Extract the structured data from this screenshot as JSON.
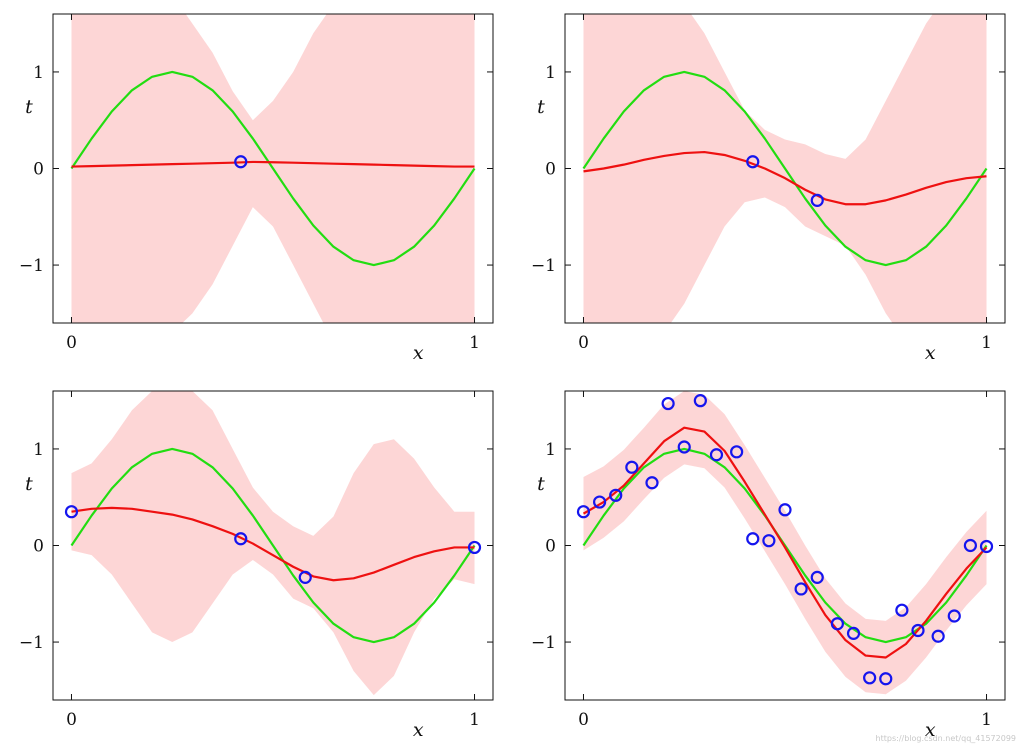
{
  "chart_data": [
    {
      "type": "line",
      "xlabel": "x",
      "ylabel": "t",
      "xlim": [
        0,
        1
      ],
      "ylim": [
        -1.6,
        1.6
      ],
      "xticks": [
        "0",
        "1"
      ],
      "yticks": [
        "−1",
        "0",
        "1"
      ],
      "grid": false,
      "legend": "none",
      "colors": {
        "true": "#22dd11",
        "mean": "#ee1111",
        "band": "#fdd6d6",
        "points": "#1515ee"
      },
      "x": [
        0,
        0.05,
        0.1,
        0.15,
        0.2,
        0.25,
        0.3,
        0.35,
        0.4,
        0.45,
        0.5,
        0.55,
        0.6,
        0.65,
        0.7,
        0.75,
        0.8,
        0.85,
        0.9,
        0.95,
        1.0
      ],
      "series": [
        {
          "values": [
            0.0,
            0.31,
            0.59,
            0.81,
            0.95,
            1.0,
            0.95,
            0.81,
            0.59,
            0.31,
            0.0,
            -0.31,
            -0.59,
            -0.81,
            -0.95,
            -1.0,
            -0.95,
            -0.81,
            -0.59,
            -0.31,
            0.0
          ]
        },
        {
          "values": [
            0.02,
            0.025,
            0.03,
            0.035,
            0.04,
            0.045,
            0.05,
            0.055,
            0.06,
            0.068,
            0.065,
            0.06,
            0.055,
            0.05,
            0.045,
            0.04,
            0.035,
            0.03,
            0.025,
            0.02,
            0.02
          ]
        },
        {
          "lower": [
            -1.8,
            -1.8,
            -1.8,
            -1.8,
            -1.8,
            -1.7,
            -1.5,
            -1.2,
            -0.8,
            -0.4,
            -0.6,
            -1.0,
            -1.4,
            -1.8,
            -1.8,
            -1.8,
            -1.8,
            -1.8,
            -1.8,
            -1.8,
            -1.8
          ],
          "upper": [
            1.8,
            1.8,
            1.8,
            1.8,
            1.8,
            1.8,
            1.5,
            1.2,
            0.8,
            0.5,
            0.7,
            1.0,
            1.4,
            1.7,
            1.8,
            1.8,
            1.8,
            1.8,
            1.8,
            1.8,
            1.8
          ]
        }
      ],
      "points": [
        {
          "x": 0.42,
          "y": 0.07
        }
      ]
    },
    {
      "type": "line",
      "xlabel": "x",
      "ylabel": "t",
      "xlim": [
        0,
        1
      ],
      "ylim": [
        -1.6,
        1.6
      ],
      "xticks": [
        "0",
        "1"
      ],
      "yticks": [
        "−1",
        "0",
        "1"
      ],
      "grid": false,
      "legend": "none",
      "colors": {
        "true": "#22dd11",
        "mean": "#ee1111",
        "band": "#fdd6d6",
        "points": "#1515ee"
      },
      "x": [
        0,
        0.05,
        0.1,
        0.15,
        0.2,
        0.25,
        0.3,
        0.35,
        0.4,
        0.45,
        0.5,
        0.55,
        0.6,
        0.65,
        0.7,
        0.75,
        0.8,
        0.85,
        0.9,
        0.95,
        1.0
      ],
      "series": [
        {
          "values": [
            0.0,
            0.31,
            0.59,
            0.81,
            0.95,
            1.0,
            0.95,
            0.81,
            0.59,
            0.31,
            0.0,
            -0.31,
            -0.59,
            -0.81,
            -0.95,
            -1.0,
            -0.95,
            -0.81,
            -0.59,
            -0.31,
            0.0
          ]
        },
        {
          "values": [
            -0.03,
            0.0,
            0.04,
            0.09,
            0.13,
            0.16,
            0.17,
            0.14,
            0.08,
            0.0,
            -0.1,
            -0.22,
            -0.32,
            -0.37,
            -0.37,
            -0.33,
            -0.27,
            -0.2,
            -0.14,
            -0.1,
            -0.08
          ]
        },
        {
          "lower": [
            -1.8,
            -1.8,
            -1.8,
            -1.8,
            -1.7,
            -1.4,
            -1.0,
            -0.6,
            -0.35,
            -0.3,
            -0.4,
            -0.6,
            -0.7,
            -0.8,
            -1.1,
            -1.5,
            -1.8,
            -1.8,
            -1.8,
            -1.8,
            -1.8
          ],
          "upper": [
            1.8,
            1.8,
            1.8,
            1.8,
            1.8,
            1.7,
            1.4,
            1.0,
            0.6,
            0.4,
            0.3,
            0.25,
            0.15,
            0.1,
            0.3,
            0.7,
            1.1,
            1.5,
            1.8,
            1.8,
            1.8
          ]
        }
      ],
      "points": [
        {
          "x": 0.42,
          "y": 0.07
        },
        {
          "x": 0.58,
          "y": -0.33
        }
      ]
    },
    {
      "type": "line",
      "xlabel": "x",
      "ylabel": "t",
      "xlim": [
        0,
        1
      ],
      "ylim": [
        -1.6,
        1.6
      ],
      "xticks": [
        "0",
        "1"
      ],
      "yticks": [
        "−1",
        "0",
        "1"
      ],
      "grid": false,
      "legend": "none",
      "colors": {
        "true": "#22dd11",
        "mean": "#ee1111",
        "band": "#fdd6d6",
        "points": "#1515ee"
      },
      "x": [
        0,
        0.05,
        0.1,
        0.15,
        0.2,
        0.25,
        0.3,
        0.35,
        0.4,
        0.45,
        0.5,
        0.55,
        0.6,
        0.65,
        0.7,
        0.75,
        0.8,
        0.85,
        0.9,
        0.95,
        1.0
      ],
      "series": [
        {
          "values": [
            0.0,
            0.31,
            0.59,
            0.81,
            0.95,
            1.0,
            0.95,
            0.81,
            0.59,
            0.31,
            0.0,
            -0.31,
            -0.59,
            -0.81,
            -0.95,
            -1.0,
            -0.95,
            -0.81,
            -0.59,
            -0.31,
            0.0
          ]
        },
        {
          "values": [
            0.35,
            0.38,
            0.39,
            0.38,
            0.35,
            0.32,
            0.27,
            0.2,
            0.12,
            0.02,
            -0.1,
            -0.22,
            -0.32,
            -0.36,
            -0.34,
            -0.28,
            -0.2,
            -0.12,
            -0.06,
            -0.02,
            -0.02
          ]
        },
        {
          "lower": [
            -0.05,
            -0.1,
            -0.3,
            -0.6,
            -0.9,
            -1.0,
            -0.9,
            -0.6,
            -0.3,
            -0.15,
            -0.3,
            -0.55,
            -0.65,
            -0.9,
            -1.3,
            -1.55,
            -1.35,
            -0.9,
            -0.55,
            -0.35,
            -0.4
          ],
          "upper": [
            0.75,
            0.85,
            1.1,
            1.4,
            1.6,
            1.7,
            1.6,
            1.4,
            1.0,
            0.6,
            0.35,
            0.2,
            0.1,
            0.3,
            0.75,
            1.05,
            1.1,
            0.9,
            0.6,
            0.35,
            0.35
          ]
        }
      ],
      "points": [
        {
          "x": 0.0,
          "y": 0.35
        },
        {
          "x": 0.42,
          "y": 0.07
        },
        {
          "x": 0.58,
          "y": -0.33
        },
        {
          "x": 1.0,
          "y": -0.02
        }
      ]
    },
    {
      "type": "line",
      "xlabel": "x",
      "ylabel": "t",
      "xlim": [
        0,
        1
      ],
      "ylim": [
        -1.6,
        1.6
      ],
      "xticks": [
        "0",
        "1"
      ],
      "yticks": [
        "−1",
        "0",
        "1"
      ],
      "grid": false,
      "legend": "none",
      "colors": {
        "true": "#22dd11",
        "mean": "#ee1111",
        "band": "#fdd6d6",
        "points": "#1515ee"
      },
      "x": [
        0,
        0.05,
        0.1,
        0.15,
        0.2,
        0.25,
        0.3,
        0.35,
        0.4,
        0.45,
        0.5,
        0.55,
        0.6,
        0.65,
        0.7,
        0.75,
        0.8,
        0.85,
        0.9,
        0.95,
        1.0
      ],
      "series": [
        {
          "values": [
            0.0,
            0.31,
            0.59,
            0.81,
            0.95,
            1.0,
            0.95,
            0.81,
            0.59,
            0.31,
            0.0,
            -0.31,
            -0.59,
            -0.81,
            -0.95,
            -1.0,
            -0.95,
            -0.81,
            -0.59,
            -0.31,
            0.0
          ]
        },
        {
          "values": [
            0.33,
            0.45,
            0.62,
            0.85,
            1.08,
            1.22,
            1.18,
            0.98,
            0.66,
            0.32,
            -0.02,
            -0.38,
            -0.72,
            -0.98,
            -1.14,
            -1.16,
            -1.02,
            -0.78,
            -0.5,
            -0.24,
            -0.02
          ]
        },
        {
          "lower": [
            -0.05,
            0.08,
            0.25,
            0.48,
            0.7,
            0.84,
            0.8,
            0.6,
            0.28,
            -0.06,
            -0.4,
            -0.76,
            -1.1,
            -1.36,
            -1.52,
            -1.54,
            -1.4,
            -1.16,
            -0.88,
            -0.62,
            -0.4
          ],
          "upper": [
            0.71,
            0.82,
            0.99,
            1.22,
            1.46,
            1.6,
            1.56,
            1.36,
            1.04,
            0.7,
            0.36,
            0.0,
            -0.34,
            -0.6,
            -0.76,
            -0.78,
            -0.64,
            -0.4,
            -0.12,
            0.14,
            0.36
          ]
        }
      ],
      "points": [
        {
          "x": 0.0,
          "y": 0.35
        },
        {
          "x": 0.04,
          "y": 0.45
        },
        {
          "x": 0.08,
          "y": 0.52
        },
        {
          "x": 0.12,
          "y": 0.81
        },
        {
          "x": 0.17,
          "y": 0.65
        },
        {
          "x": 0.21,
          "y": 1.47
        },
        {
          "x": 0.25,
          "y": 1.02
        },
        {
          "x": 0.29,
          "y": 1.5
        },
        {
          "x": 0.33,
          "y": 0.94
        },
        {
          "x": 0.38,
          "y": 0.97
        },
        {
          "x": 0.42,
          "y": 0.07
        },
        {
          "x": 0.46,
          "y": 0.05
        },
        {
          "x": 0.5,
          "y": 0.37
        },
        {
          "x": 0.54,
          "y": -0.45
        },
        {
          "x": 0.58,
          "y": -0.33
        },
        {
          "x": 0.63,
          "y": -0.81
        },
        {
          "x": 0.67,
          "y": -0.91
        },
        {
          "x": 0.71,
          "y": -1.37
        },
        {
          "x": 0.75,
          "y": -1.38
        },
        {
          "x": 0.79,
          "y": -0.67
        },
        {
          "x": 0.83,
          "y": -0.88
        },
        {
          "x": 0.88,
          "y": -0.94
        },
        {
          "x": 0.92,
          "y": -0.73
        },
        {
          "x": 0.96,
          "y": 0.0
        },
        {
          "x": 1.0,
          "y": -0.01
        }
      ]
    }
  ],
  "watermark": "https://blog.csdn.net/qq_41572099"
}
